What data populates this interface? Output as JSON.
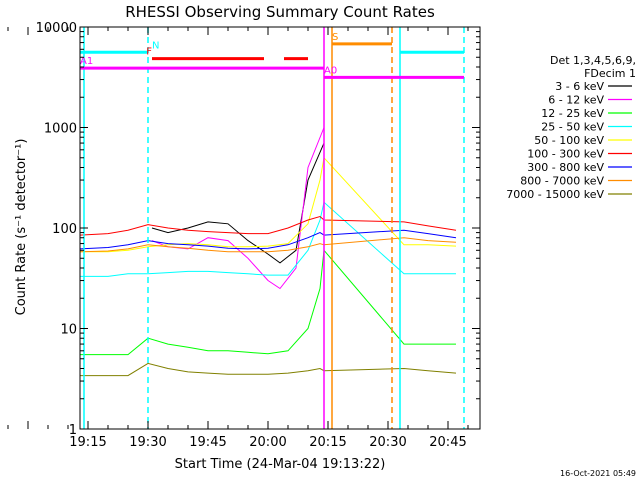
{
  "chart_data": {
    "type": "line",
    "title": "RHESSI Observing Summary Count Rates",
    "xlabel": "Start Time (24-Mar-04 19:13:22)",
    "ylabel": "Count Rate (s⁻¹ detector⁻¹)",
    "y_scale": "log",
    "xlim": [
      "19:13",
      "20:53"
    ],
    "ylim": [
      1,
      10000
    ],
    "x_ticks": [
      "19:15",
      "19:30",
      "19:45",
      "20:00",
      "20:15",
      "20:30",
      "20:45"
    ],
    "y_ticks": [
      {
        "value": 1,
        "label": "1"
      },
      {
        "value": 10,
        "label": "10"
      },
      {
        "value": 100,
        "label": "100"
      },
      {
        "value": 1000,
        "label": "1000"
      },
      {
        "value": 10000,
        "label": "10000"
      }
    ],
    "legend": {
      "position": "right",
      "header": [
        "Det 1,3,4,5,6,9,",
        "FDecim 1"
      ]
    },
    "series": [
      {
        "name": "3 - 6 keV",
        "color": "#000000",
        "x": [
          "19:31",
          "19:35",
          "19:40",
          "19:45",
          "19:50",
          "19:55",
          "20:00",
          "20:03",
          "20:07",
          "20:10",
          "20:14",
          "20:34",
          "20:40",
          "20:47"
        ],
        "y": [
          100,
          90,
          100,
          115,
          110,
          75,
          55,
          45,
          60,
          300,
          700,
          null,
          null,
          null
        ]
      },
      {
        "name": "6 - 12 keV",
        "color": "#ff00ff",
        "x": [
          "19:31",
          "19:35",
          "19:40",
          "19:45",
          "19:50",
          "19:55",
          "20:00",
          "20:03",
          "20:07",
          "20:10",
          "20:14",
          "20:34",
          "20:40",
          "20:47"
        ],
        "y": [
          75,
          65,
          62,
          80,
          75,
          50,
          30,
          25,
          40,
          400,
          1000,
          null,
          null,
          null
        ]
      },
      {
        "name": "12 - 25 keV",
        "color": "#00ff00",
        "x": [
          "19:13",
          "19:20",
          "19:25",
          "19:30",
          "19:35",
          "19:40",
          "19:45",
          "19:50",
          "19:55",
          "20:00",
          "20:05",
          "20:10",
          "20:13",
          "20:14",
          "20:34",
          "20:40",
          "20:47"
        ],
        "y": [
          5.5,
          5.5,
          5.5,
          8,
          7,
          6.5,
          6,
          6,
          5.8,
          5.6,
          6,
          10,
          25,
          60,
          7,
          7,
          7
        ]
      },
      {
        "name": "25 - 50 keV",
        "color": "#00ffff",
        "x": [
          "19:13",
          "19:20",
          "19:25",
          "19:30",
          "19:35",
          "19:40",
          "19:45",
          "19:50",
          "19:55",
          "20:00",
          "20:05",
          "20:10",
          "20:13",
          "20:14",
          "20:34",
          "20:40",
          "20:47"
        ],
        "y": [
          33,
          33,
          35,
          35,
          36,
          37,
          37,
          36,
          35,
          34,
          34,
          60,
          120,
          180,
          35,
          35,
          35
        ]
      },
      {
        "name": "50 - 100 keV",
        "color": "#ffff00",
        "x": [
          "19:13",
          "19:20",
          "19:25",
          "19:30",
          "19:35",
          "19:40",
          "19:45",
          "19:50",
          "19:55",
          "20:00",
          "20:05",
          "20:10",
          "20:13",
          "20:14",
          "20:34",
          "20:40",
          "20:47"
        ],
        "y": [
          58,
          58,
          60,
          65,
          68,
          70,
          68,
          65,
          65,
          66,
          70,
          110,
          300,
          500,
          68,
          68,
          66
        ]
      },
      {
        "name": "100 - 300 keV",
        "color": "#ff0000",
        "x": [
          "19:13",
          "19:20",
          "19:25",
          "19:30",
          "19:35",
          "19:40",
          "19:45",
          "19:50",
          "19:55",
          "20:00",
          "20:05",
          "20:10",
          "20:13",
          "20:14",
          "20:34",
          "20:40",
          "20:47"
        ],
        "y": [
          85,
          88,
          95,
          108,
          100,
          95,
          92,
          90,
          88,
          88,
          100,
          120,
          130,
          120,
          115,
          105,
          95
        ]
      },
      {
        "name": "300 - 800 keV",
        "color": "#0000ff",
        "x": [
          "19:13",
          "19:20",
          "19:25",
          "19:30",
          "19:35",
          "19:40",
          "19:45",
          "19:50",
          "19:55",
          "20:00",
          "20:05",
          "20:10",
          "20:13",
          "20:14",
          "20:34",
          "20:40",
          "20:47"
        ],
        "y": [
          62,
          64,
          68,
          75,
          70,
          68,
          66,
          63,
          62,
          63,
          68,
          80,
          90,
          85,
          95,
          88,
          80
        ]
      },
      {
        "name": "800 - 7000 keV",
        "color": "#ff8c00",
        "x": [
          "19:13",
          "19:20",
          "19:25",
          "19:30",
          "19:35",
          "19:40",
          "19:45",
          "19:50",
          "19:55",
          "20:00",
          "20:05",
          "20:10",
          "20:13",
          "20:14",
          "20:34",
          "20:40",
          "20:47"
        ],
        "y": [
          58,
          59,
          62,
          68,
          65,
          63,
          60,
          58,
          58,
          58,
          60,
          65,
          70,
          68,
          80,
          75,
          72
        ]
      },
      {
        "name": "7000 - 15000 keV",
        "color": "#808000",
        "x": [
          "19:13",
          "19:20",
          "19:25",
          "19:30",
          "19:35",
          "19:40",
          "19:45",
          "19:50",
          "19:55",
          "20:00",
          "20:05",
          "20:10",
          "20:13",
          "20:14",
          "20:34",
          "20:40",
          "20:47"
        ],
        "y": [
          3.4,
          3.4,
          3.4,
          4.5,
          4,
          3.7,
          3.6,
          3.5,
          3.5,
          3.5,
          3.6,
          3.8,
          4,
          3.8,
          4,
          3.8,
          3.6
        ]
      }
    ],
    "flag_bars": [
      {
        "label": "N",
        "color": "#00ffff",
        "segments": [
          [
            "19:13",
            "19:30"
          ],
          [
            "20:33",
            "20:49"
          ]
        ],
        "y": 5600
      },
      {
        "label": "F",
        "color": "#ff0000",
        "segments": [
          [
            "19:31",
            "19:59"
          ],
          [
            "20:04",
            "20:10"
          ]
        ],
        "y": 4850
      },
      {
        "label": "S",
        "color": "#ff8c00",
        "segments": [
          [
            "20:16",
            "20:31"
          ]
        ],
        "y": 6800
      },
      {
        "label": "A0",
        "color": "#ff00ff",
        "segments": [
          [
            "20:14",
            "20:49"
          ]
        ],
        "y": 3150
      },
      {
        "label": "A1",
        "color": "#ff00ff",
        "segments": [
          [
            "19:13",
            "20:14"
          ]
        ],
        "y": 3900
      }
    ],
    "vertical_markers": [
      {
        "time": "19:14",
        "color": "#00ffff",
        "style": "solid"
      },
      {
        "time": "19:30",
        "color": "#00ffff",
        "style": "dashed"
      },
      {
        "time": "20:14",
        "color": "#ff00ff",
        "style": "solid"
      },
      {
        "time": "20:16",
        "color": "#ff8c00",
        "style": "solid"
      },
      {
        "time": "20:31",
        "color": "#ff8c00",
        "style": "dashed"
      },
      {
        "time": "20:33",
        "color": "#00ffff",
        "style": "solid"
      },
      {
        "time": "20:49",
        "color": "#00ffff",
        "style": "dashed"
      }
    ]
  },
  "footer": {
    "timestamp": "16-Oct-2021 05:49"
  }
}
